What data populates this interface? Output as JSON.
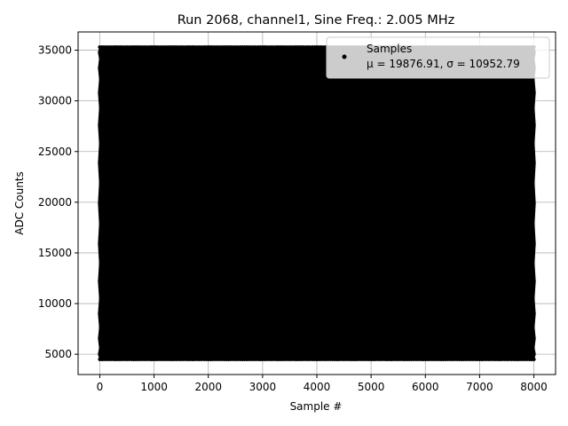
{
  "chart_data": {
    "type": "scatter",
    "title": "Run 2068, channel1, Sine Freq.: 2.005 MHz",
    "xlabel": "Sample #",
    "ylabel": "ADC Counts",
    "xlim": [
      -400,
      8400
    ],
    "ylim": [
      3000,
      36800
    ],
    "xticks": [
      0,
      1000,
      2000,
      3000,
      4000,
      5000,
      6000,
      7000,
      8000
    ],
    "yticks": [
      5000,
      10000,
      15000,
      20000,
      25000,
      30000,
      35000
    ],
    "grid": true,
    "legend_position": "top-right",
    "series": [
      {
        "name": "Samples",
        "legend_stats": "μ = 19876.91, σ = 10952.79",
        "color": "#000000",
        "marker": "dot",
        "n_samples": 8000,
        "mean": 19876.91,
        "std": 10952.79,
        "min": 4500,
        "max": 35300,
        "sine_freq_mhz": 2.005
      }
    ]
  }
}
